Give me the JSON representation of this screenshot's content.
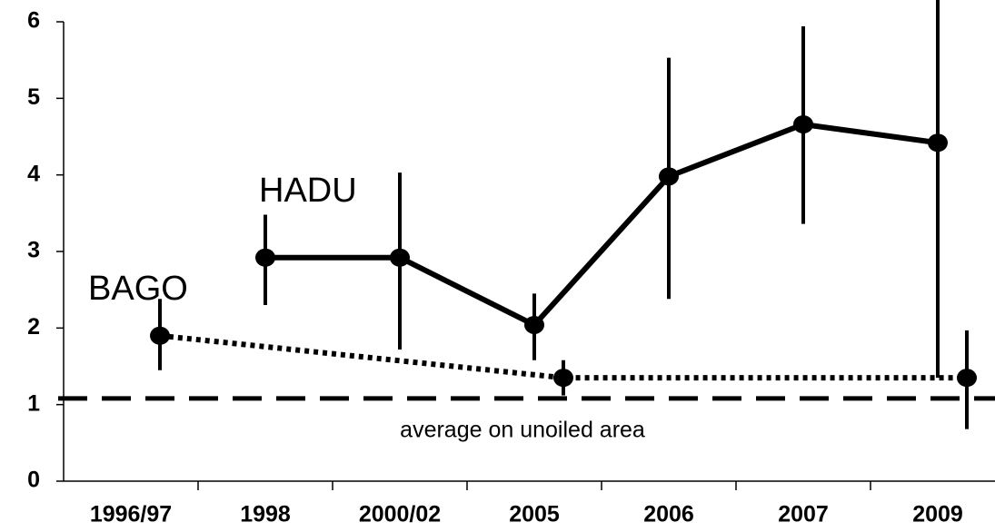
{
  "chart_data": {
    "type": "line",
    "categories": [
      "1996/97",
      "1998",
      "2000/02",
      "2005",
      "2006",
      "2007",
      "2009"
    ],
    "series": [
      {
        "name": "HADU",
        "color": "#000000",
        "style": "solid",
        "connect_gaps": false,
        "values": [
          null,
          2.92,
          2.92,
          2.04,
          3.98,
          4.66,
          4.42
        ],
        "low": [
          null,
          2.3,
          1.72,
          1.58,
          2.38,
          3.36,
          1.35
        ],
        "high": [
          null,
          3.48,
          4.03,
          2.45,
          5.53,
          5.94,
          6.5
        ]
      },
      {
        "name": "BAGO",
        "color": "#000000",
        "style": "dotted",
        "connect_gaps": true,
        "values": [
          1.9,
          null,
          null,
          1.35,
          null,
          null,
          1.35
        ],
        "low": [
          1.45,
          null,
          null,
          1.12,
          null,
          null,
          0.68
        ],
        "high": [
          2.38,
          null,
          null,
          1.58,
          null,
          null,
          1.97
        ]
      }
    ],
    "reference_line": {
      "value": 1.08,
      "label": "average on unoiled area"
    },
    "ylim": [
      0,
      6
    ],
    "yticks": [
      0,
      1,
      2,
      3,
      4,
      5,
      6
    ],
    "grid": false
  }
}
